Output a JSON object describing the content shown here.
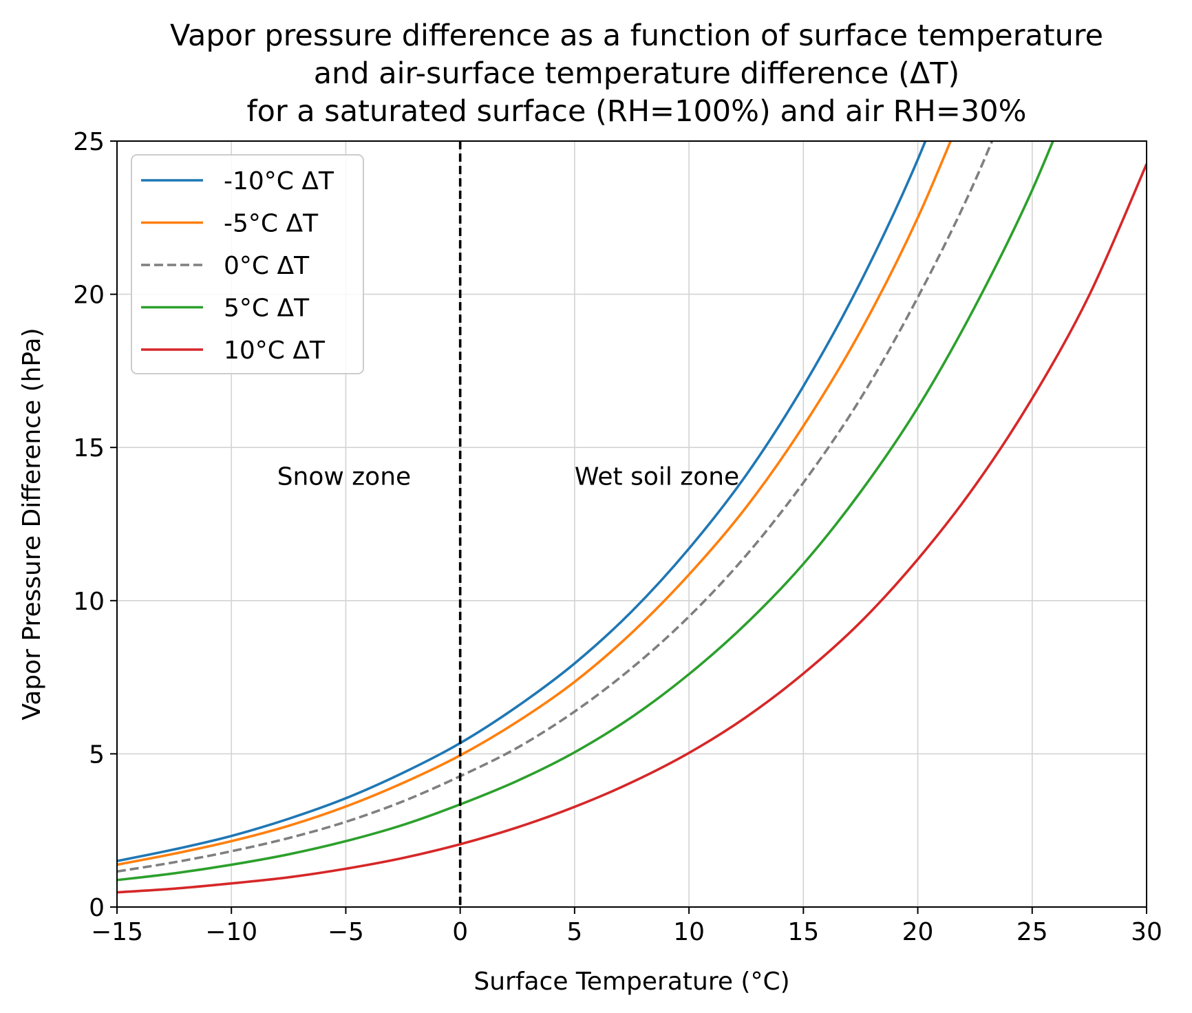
{
  "chart_data": {
    "type": "line",
    "title": [
      "Vapor pressure difference as a function of surface temperature",
      "and air-surface temperature difference (ΔT)",
      "for a saturated surface (RH=100%) and air RH=30%"
    ],
    "xlabel": "Surface Temperature (°C)",
    "ylabel": "Vapor Pressure Difference (hPa)",
    "xlim": [
      -15,
      30
    ],
    "ylim": [
      0,
      25
    ],
    "x_ticks": [
      -15,
      -10,
      -5,
      0,
      5,
      10,
      15,
      20,
      25,
      30
    ],
    "x_tick_labels": [
      "−15",
      "−10",
      "−5",
      "0",
      "5",
      "10",
      "15",
      "20",
      "25",
      "30"
    ],
    "y_ticks": [
      0,
      5,
      10,
      15,
      20,
      25
    ],
    "y_tick_labels": [
      "0",
      "5",
      "10",
      "15",
      "20",
      "25"
    ],
    "grid": true,
    "legend_position": "upper-left",
    "x": [
      -15,
      -12.5,
      -10,
      -7.5,
      -5,
      -2.5,
      0,
      2.5,
      5,
      7.5,
      10,
      12.5,
      15,
      17.5,
      20,
      22.5,
      25,
      27.5,
      30
    ],
    "series": [
      {
        "name": "-10°C ΔT",
        "color": "#1f77b4",
        "dash": "solid",
        "values": [
          1.5,
          1.88,
          2.32,
          2.88,
          3.55,
          4.38,
          5.35,
          6.55,
          7.95,
          9.65,
          11.7,
          14.1,
          17.0,
          20.4,
          24.4,
          null,
          null,
          null,
          null
        ]
      },
      {
        "name": "-5°C ΔT",
        "color": "#ff7f0e",
        "dash": "solid",
        "values": [
          1.38,
          1.74,
          2.15,
          2.65,
          3.28,
          4.05,
          4.95,
          6.05,
          7.35,
          8.95,
          10.85,
          13.05,
          15.7,
          18.8,
          22.5,
          null,
          null,
          null,
          null
        ]
      },
      {
        "name": "0°C ΔT",
        "color": "#7f7f7f",
        "dash": "dashed",
        "values": [
          1.16,
          1.46,
          1.82,
          2.25,
          2.78,
          3.45,
          4.27,
          5.2,
          6.38,
          7.8,
          9.48,
          11.48,
          13.85,
          16.6,
          19.9,
          23.7,
          null,
          null,
          null
        ]
      },
      {
        "name": "5°C ΔT",
        "color": "#2ca02c",
        "dash": "solid",
        "values": [
          0.88,
          1.1,
          1.38,
          1.72,
          2.15,
          2.68,
          3.35,
          4.12,
          5.05,
          6.2,
          7.6,
          9.25,
          11.2,
          13.55,
          16.3,
          19.6,
          23.4,
          null,
          null
        ]
      },
      {
        "name": "10°C ΔT",
        "color": "#d62728",
        "dash": "solid",
        "values": [
          0.48,
          0.6,
          0.77,
          0.97,
          1.25,
          1.6,
          2.05,
          2.6,
          3.27,
          4.07,
          5.03,
          6.2,
          7.62,
          9.3,
          11.35,
          13.75,
          16.6,
          19.98,
          24.25
        ]
      }
    ],
    "vertical_line": {
      "x": 0,
      "color": "#000000",
      "dash": "dashed"
    },
    "annotations": [
      {
        "text": "Snow zone",
        "x": -8,
        "y": 14
      },
      {
        "text": "Wet soil zone",
        "x": 5,
        "y": 14
      }
    ]
  }
}
